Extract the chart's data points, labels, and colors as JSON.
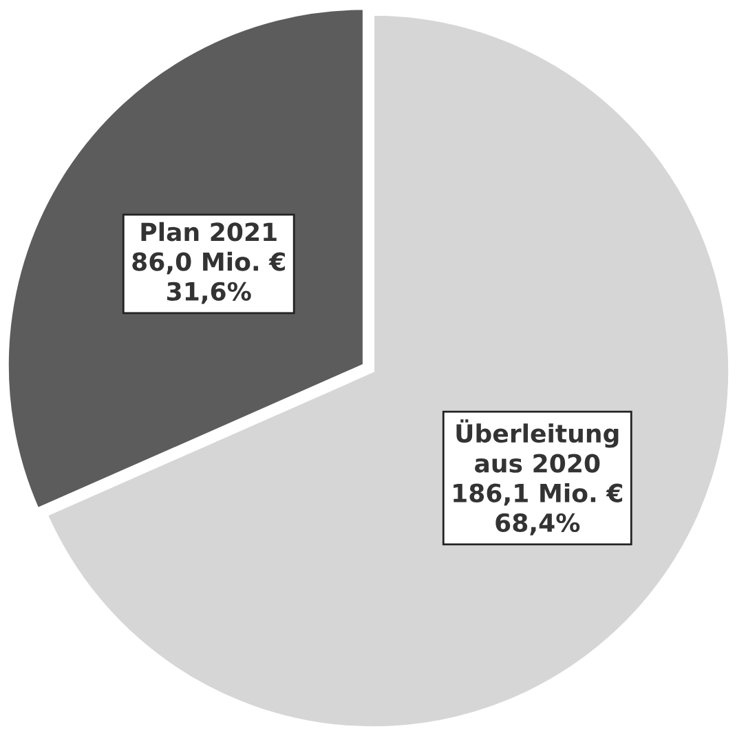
{
  "chart_data": {
    "type": "pie",
    "categories": [
      "Überleitung\naus 2020",
      "Plan 2021"
    ],
    "values": [
      186.1,
      86.0
    ],
    "colors": [
      "#d6d6d6",
      "#5c5c5c"
    ],
    "value_labels": [
      "186,1 Mio. €\n68,4%",
      "86,0 Mio. €\n31,6%"
    ]
  }
}
